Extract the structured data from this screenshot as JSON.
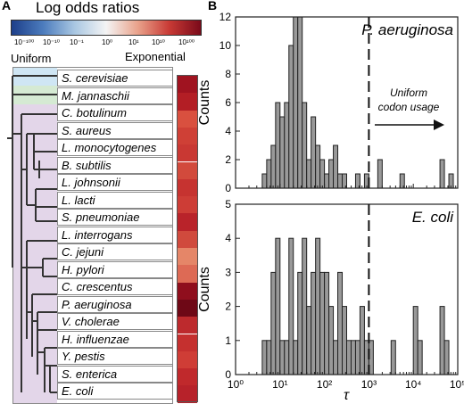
{
  "panel_a": {
    "letter": "A",
    "colorbar": {
      "title": "Log odds ratios",
      "ticks": [
        "10⁻¹⁰⁰",
        "10⁻¹⁰",
        "10⁻¹",
        "10⁰",
        "10¹",
        "10¹⁰",
        "10¹⁰⁰"
      ],
      "colors": [
        "#1d3f8a",
        "#4c7cbd",
        "#a9c7e2",
        "#f4f4f4",
        "#e9a28b",
        "#c83a35",
        "#7a0a1a"
      ]
    },
    "left_label": "Uniform",
    "right_label": "Exponential",
    "species": [
      {
        "name": "S. cerevisiae",
        "color": "#a01320"
      },
      {
        "name": "M. jannaschii",
        "color": "#b31e25"
      },
      {
        "name": "C. botulinum",
        "color": "#d9503f"
      },
      {
        "name": "S. aureus",
        "color": "#cf4036"
      },
      {
        "name": "L. monocytogenes",
        "color": "#c93833"
      },
      {
        "name": "B. subtilis",
        "color": "#d24a3c"
      },
      {
        "name": "L. johnsonii",
        "color": "#c63330"
      },
      {
        "name": "L. lacti",
        "color": "#cd3d36"
      },
      {
        "name": "S. pneumoniae",
        "color": "#b9232a"
      },
      {
        "name": "L. interrogans",
        "color": "#d04a3d"
      },
      {
        "name": "C. jejuni",
        "color": "#e58668"
      },
      {
        "name": "H. pylori",
        "color": "#dd6a55"
      },
      {
        "name": "C. crescentus",
        "color": "#8f0e1d"
      },
      {
        "name": "P. aeruginosa",
        "color": "#6e0816"
      },
      {
        "name": "V. cholerae",
        "color": "#bd2a2d"
      },
      {
        "name": "H. influenzae",
        "color": "#c5302f"
      },
      {
        "name": "Y. pestis",
        "color": "#cf3d36"
      },
      {
        "name": "S. enterica",
        "color": "#c0292c"
      },
      {
        "name": "E. coli",
        "color": "#b7222a"
      }
    ],
    "clade_colors": {
      "fungi": "#cfe6f4",
      "archaea": "#d5ead3",
      "bacteria": "#e3d6e9"
    }
  },
  "panel_b": {
    "letter": "B",
    "annotation": "Uniform codon usage",
    "annotation_lines": [
      "Uniform",
      "codon usage"
    ],
    "xlabel": "τ",
    "ylabel": "Counts"
  },
  "chart_data": [
    {
      "type": "bar",
      "title": "P. aeruginosa",
      "xlabel": "τ",
      "ylabel": "Counts",
      "x_scale": "log",
      "xlim": [
        1,
        100000
      ],
      "ylim": [
        0,
        12
      ],
      "yticks": [
        0,
        2,
        4,
        6,
        8,
        10,
        12
      ],
      "threshold_line_x": 1000,
      "bins_log10_left": [
        0.6,
        0.7,
        0.8,
        0.9,
        1.0,
        1.1,
        1.2,
        1.3,
        1.4,
        1.5,
        1.6,
        1.7,
        1.8,
        1.9,
        2.0,
        2.1,
        2.2,
        2.3,
        2.4,
        2.7,
        2.9,
        3.2,
        3.7,
        4.6,
        4.8
      ],
      "values": [
        1,
        2,
        3,
        6,
        5,
        6,
        10,
        12,
        12,
        6,
        2,
        5,
        3,
        2,
        1,
        2,
        3,
        1,
        1,
        1,
        1,
        2,
        1,
        2,
        1
      ],
      "bin_width_log10": 0.1
    },
    {
      "type": "bar",
      "title": "E. coli",
      "xlabel": "τ",
      "ylabel": "Counts",
      "x_scale": "log",
      "xlim": [
        1,
        100000
      ],
      "ylim": [
        0,
        5
      ],
      "yticks": [
        0,
        1,
        2,
        3,
        4,
        5
      ],
      "xtick_labels": [
        "10⁰",
        "10¹",
        "10²",
        "10³",
        "10⁴",
        "10⁵"
      ],
      "threshold_line_x": 1000,
      "bins_log10_left": [
        0.6,
        0.7,
        0.8,
        0.9,
        1.0,
        1.1,
        1.2,
        1.3,
        1.4,
        1.5,
        1.6,
        1.7,
        1.8,
        1.9,
        2.0,
        2.1,
        2.2,
        2.3,
        2.4,
        2.5,
        2.6,
        2.7,
        2.8,
        2.9,
        3.0,
        3.5,
        4.0,
        4.1,
        4.6,
        4.7
      ],
      "values": [
        1,
        1,
        3,
        4,
        1,
        1,
        4,
        1,
        3,
        4,
        2,
        3,
        4,
        3,
        3,
        2,
        1,
        3,
        2,
        1,
        1,
        1,
        2,
        1,
        1,
        1,
        2,
        1,
        2,
        1
      ],
      "bin_width_log10": 0.1
    }
  ]
}
